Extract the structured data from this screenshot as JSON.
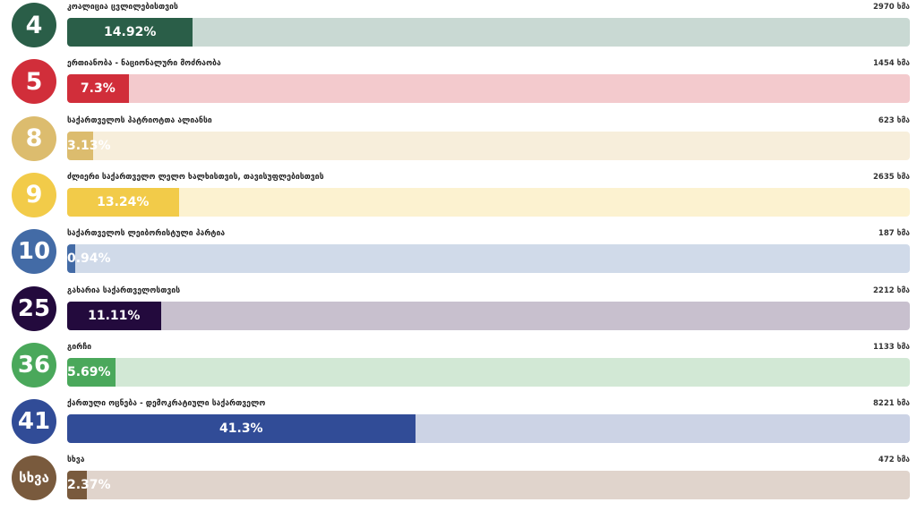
{
  "chart_data": {
    "type": "bar",
    "orientation": "horizontal",
    "unit": "ხმა",
    "xlim": [
      0,
      100
    ],
    "rows": [
      {
        "number": "4",
        "name": "კოალიცია ცვლილებისთვის",
        "votes": "2970 ხმა",
        "percent_label": "14.92%",
        "percent": 14.92,
        "color": "#2a5e48",
        "track_color": "#c9d9d3"
      },
      {
        "number": "5",
        "name": "ერთიანობა - ნაციონალური მოძრაობა",
        "votes": "1454 ხმა",
        "percent_label": "7.3%",
        "percent": 7.3,
        "color": "#d12e3a",
        "track_color": "#f3cacd"
      },
      {
        "number": "8",
        "name": "საქართველოს პატრიოტთა ალიანსი",
        "votes": "623 ხმა",
        "percent_label": "3.13%",
        "percent": 3.13,
        "color": "#dcbc6e",
        "track_color": "#f7eedb"
      },
      {
        "number": "9",
        "name": "ძლიერი საქართველო ლელო ხალხისთვის, თავისუფლებისთვის",
        "votes": "2635 ხმა",
        "percent_label": "13.24%",
        "percent": 13.24,
        "color": "#f2cb49",
        "track_color": "#fcf2d0"
      },
      {
        "number": "10",
        "name": "საქართველოს ლეიბორისტული პარტია",
        "votes": "187 ხმა",
        "percent_label": "0.94%",
        "percent": 0.94,
        "color": "#436ba6",
        "track_color": "#d0dae9"
      },
      {
        "number": "25",
        "name": "გახარია საქართველოსთვის",
        "votes": "2212 ხმა",
        "percent_label": "11.11%",
        "percent": 11.11,
        "color": "#230a3d",
        "track_color": "#c8c0ce"
      },
      {
        "number": "36",
        "name": "გირჩი",
        "votes": "1133 ხმა",
        "percent_label": "5.69%",
        "percent": 5.69,
        "color": "#4aa85b",
        "track_color": "#d2e8d5"
      },
      {
        "number": "41",
        "name": "ქართული ოცნება - დემოკრატიული საქართველო",
        "votes": "8221 ხმა",
        "percent_label": "41.3%",
        "percent": 41.3,
        "color": "#314c97",
        "track_color": "#ccd3e5"
      },
      {
        "number": "სხვა",
        "name": "სხვა",
        "votes": "472 ხმა",
        "percent_label": "2.37%",
        "percent": 2.37,
        "color": "#795a3d",
        "track_color": "#e0d4cc"
      }
    ]
  }
}
